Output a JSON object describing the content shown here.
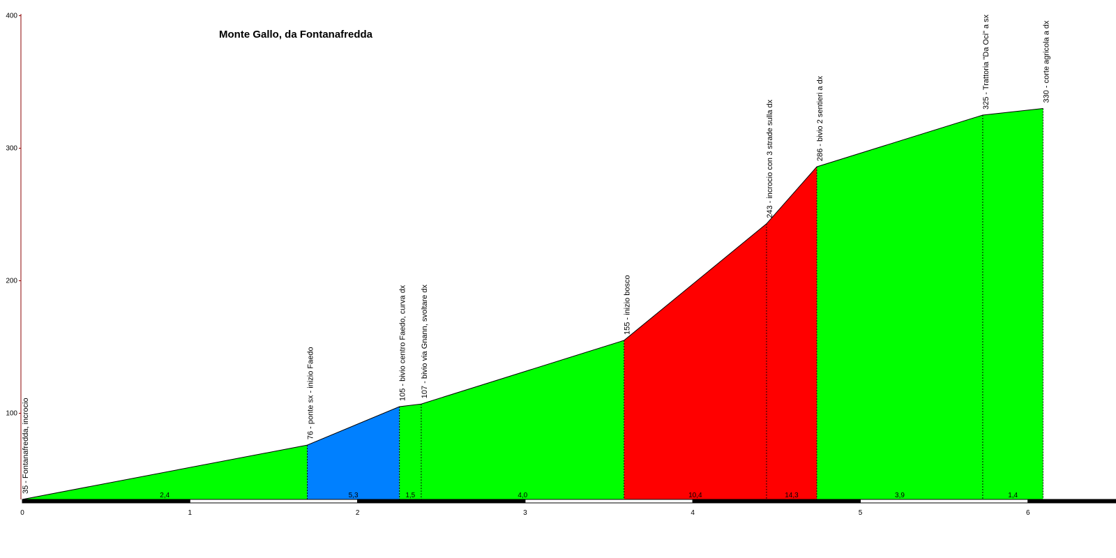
{
  "chart_data": {
    "type": "area",
    "title": "Monte Gallo, da Fontanafredda",
    "xlim": [
      0,
      6.4
    ],
    "ylim": [
      35,
      400
    ],
    "x_ticks": [
      0,
      1,
      2,
      3,
      4,
      5,
      6
    ],
    "y_ticks": [
      100,
      200,
      300,
      400
    ],
    "waypoints": [
      {
        "km": 0.0,
        "elevation": 35,
        "label": "35 - Fontanafredda, incrocio"
      },
      {
        "km": 1.7,
        "elevation": 76,
        "label": "76 - ponte sx - inizio Faedo"
      },
      {
        "km": 2.25,
        "elevation": 105,
        "label": "105 - bivio centro Faedo, curva dx"
      },
      {
        "km": 2.38,
        "elevation": 107,
        "label": "107 - bivio via Gnann, svoltare dx"
      },
      {
        "km": 3.59,
        "elevation": 155,
        "label": "155 - inizio bosco"
      },
      {
        "km": 4.44,
        "elevation": 243,
        "label": "243 - incrocio con 3 strade sulla dx"
      },
      {
        "km": 4.74,
        "elevation": 286,
        "label": "286 - bivio 2 sentieri a dx"
      },
      {
        "km": 5.73,
        "elevation": 325,
        "label": "325 - Trattoria \"Da Oci\" a sx"
      },
      {
        "km": 6.09,
        "elevation": 330,
        "label": "330 - corte agricola a dx"
      }
    ],
    "segments": [
      {
        "from": 0.0,
        "to": 1.7,
        "gradient": "2,4",
        "color": "#00ff00"
      },
      {
        "from": 1.7,
        "to": 2.25,
        "gradient": "5,3",
        "color": "#0080ff"
      },
      {
        "from": 2.25,
        "to": 2.38,
        "gradient": "1,5",
        "color": "#00ff00"
      },
      {
        "from": 2.38,
        "to": 3.59,
        "gradient": "4,0",
        "color": "#00ff00"
      },
      {
        "from": 3.59,
        "to": 4.44,
        "gradient": "10,4",
        "color": "#ff0000"
      },
      {
        "from": 4.44,
        "to": 4.74,
        "gradient": "14,3",
        "color": "#ff0000"
      },
      {
        "from": 4.74,
        "to": 5.73,
        "gradient": "3,9",
        "color": "#00ff00"
      },
      {
        "from": 5.73,
        "to": 6.09,
        "gradient": "1,4",
        "color": "#00ff00"
      }
    ],
    "colors": {
      "easy": "#00ff00",
      "medium": "#0080ff",
      "hard": "#ff0000",
      "axis": "#8b0000"
    }
  }
}
